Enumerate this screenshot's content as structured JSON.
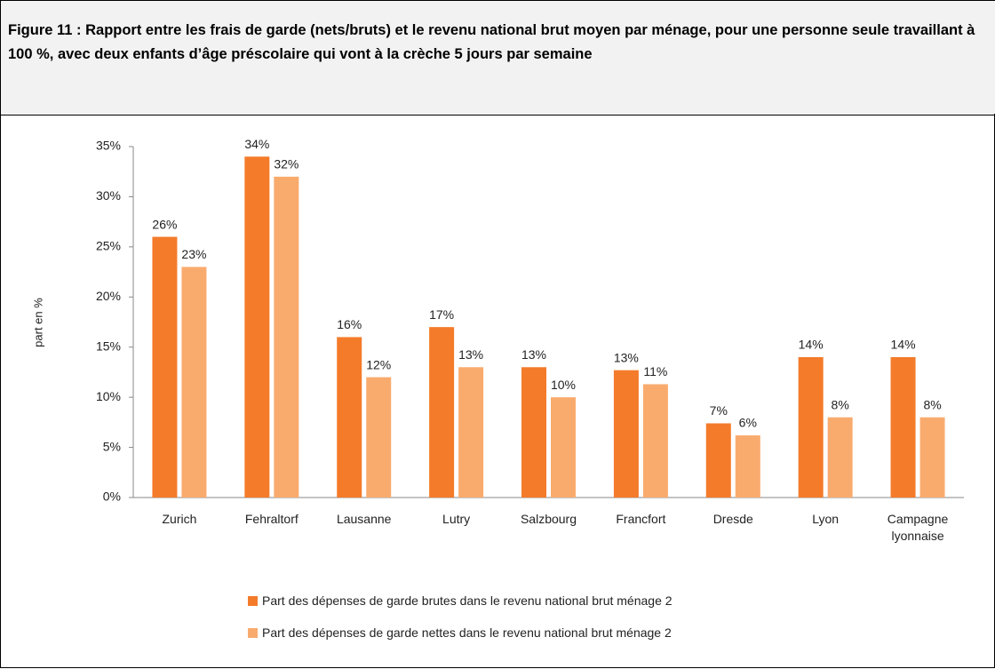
{
  "chart_data": {
    "type": "bar",
    "title": "Figure 11 : Rapport entre les frais de garde (nets/bruts) et le revenu national brut moyen par ménage, pour une personne seule travaillant à 100 %, avec deux enfants d’âge préscolaire qui vont à la crèche 5 jours par semaine",
    "y_label": "part en %",
    "categories": [
      "Zurich",
      "Fehraltorf",
      "Lausanne",
      "Lutry",
      "Salzbourg",
      "Francfort",
      "Dresde",
      "Lyon",
      "Campagne lyonnaise"
    ],
    "series": [
      {
        "name": "Part des dépenses de garde brutes dans le revenu national brut ménage 2",
        "color": "#f47b2a",
        "values": [
          26,
          34,
          16,
          17,
          13,
          12.7,
          7.4,
          14,
          14
        ],
        "value_labels": [
          "26%",
          "34%",
          "16%",
          "17%",
          "13%",
          "13%",
          "7%",
          "14%",
          "14%"
        ]
      },
      {
        "name": "Part des dépenses de garde nettes dans le revenu national brut ménage 2",
        "color": "#f9ab6e",
        "values": [
          23,
          32,
          12,
          13,
          10,
          11.3,
          6.2,
          8,
          8
        ],
        "value_labels": [
          "23%",
          "32%",
          "12%",
          "13%",
          "10%",
          "11%",
          "6%",
          "8%",
          "8%"
        ]
      }
    ],
    "ylim": [
      0,
      35
    ],
    "yticks": [
      {
        "value": 0,
        "label": "0%"
      },
      {
        "value": 5,
        "label": "5%"
      },
      {
        "value": 10,
        "label": "10%"
      },
      {
        "value": 15,
        "label": "15%"
      },
      {
        "value": 20,
        "label": "20%"
      },
      {
        "value": 25,
        "label": "25%"
      },
      {
        "value": 30,
        "label": "30%"
      },
      {
        "value": 35,
        "label": "35%"
      }
    ],
    "grid": false
  }
}
